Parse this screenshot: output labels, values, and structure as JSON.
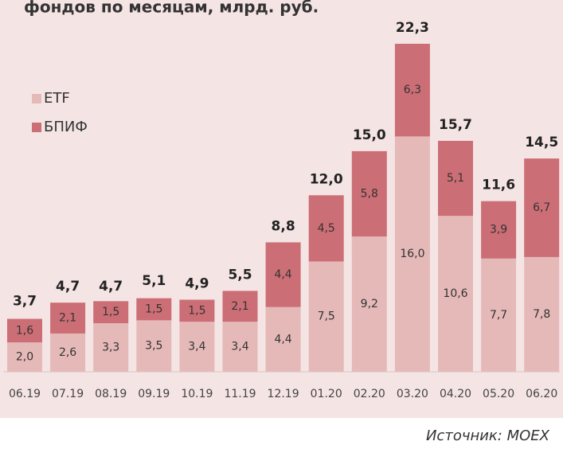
{
  "chart_data": {
    "type": "stacked_bar",
    "title": "фондов по месяцам, млрд. руб.",
    "source": "Источник: MOEX",
    "categories": [
      "06.19",
      "07.19",
      "08.19",
      "09.19",
      "10.19",
      "11.19",
      "12.19",
      "01.20",
      "02.20",
      "03.20",
      "04.20",
      "05.20",
      "06.20"
    ],
    "series": [
      {
        "name": "ETF",
        "color": "#e6b9b9",
        "values": [
          2.0,
          2.6,
          3.3,
          3.5,
          3.4,
          3.4,
          4.4,
          7.5,
          9.2,
          16.0,
          10.6,
          7.7,
          7.8
        ],
        "value_labels": [
          "2,0",
          "2,6",
          "3,3",
          "3,5",
          "3,4",
          "3,4",
          "4,4",
          "7,5",
          "9,2",
          "16,0",
          "10,6",
          "7,7",
          "7,8"
        ]
      },
      {
        "name": "БПИФ",
        "color": "#cc6e76",
        "values": [
          1.6,
          2.1,
          1.5,
          1.5,
          1.5,
          2.1,
          4.4,
          4.5,
          5.8,
          6.3,
          5.1,
          3.9,
          6.7
        ],
        "value_labels": [
          "1,6",
          "2,1",
          "1,5",
          "1,5",
          "1,5",
          "2,1",
          "4,4",
          "4,5",
          "5,8",
          "6,3",
          "5,1",
          "3,9",
          "6,7"
        ]
      }
    ],
    "totals": [
      3.7,
      4.7,
      4.7,
      5.1,
      4.9,
      5.5,
      8.8,
      12.0,
      15.0,
      22.3,
      15.7,
      11.6,
      14.5
    ],
    "total_labels": [
      "3,7",
      "4,7",
      "4,7",
      "5,1",
      "4,9",
      "5,5",
      "8,8",
      "12,0",
      "15,0",
      "22,3",
      "15,7",
      "11,6",
      "14,5"
    ],
    "legend": "upper left"
  }
}
